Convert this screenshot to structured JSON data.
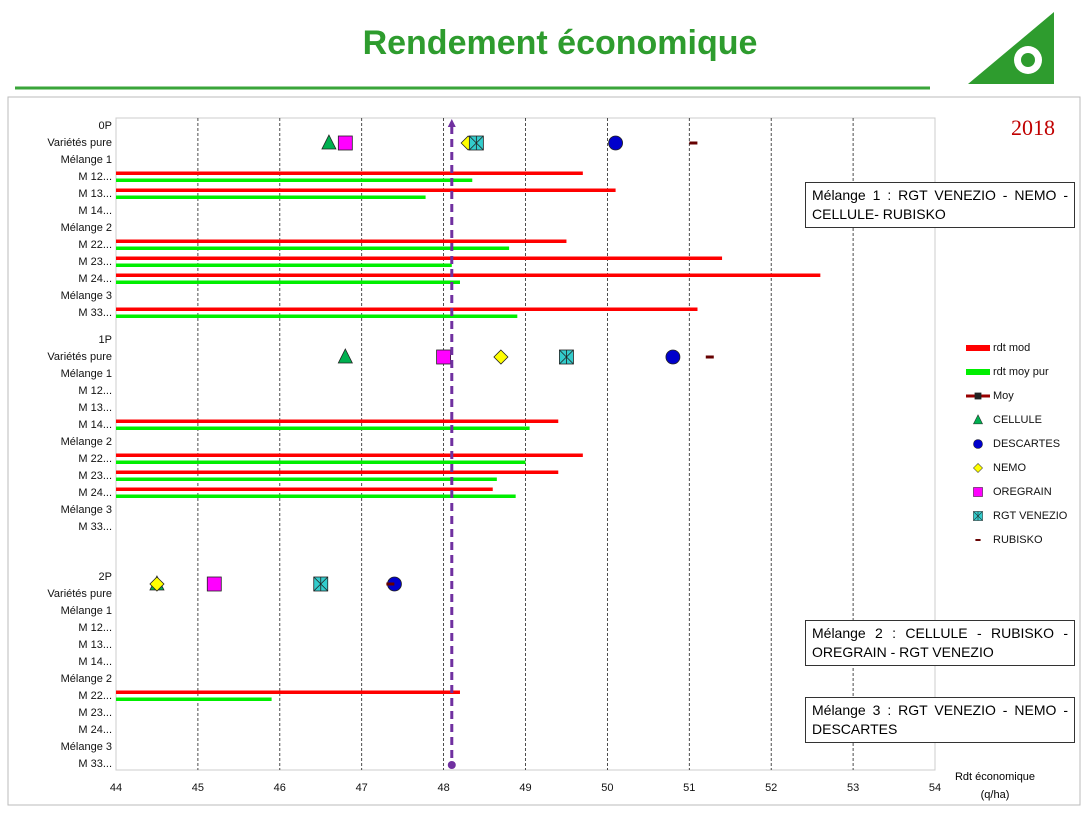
{
  "title": "Rendement économique",
  "logo_year": "2018",
  "chart_data": {
    "type": "bar",
    "groups": [
      "0P",
      "1P",
      "2P"
    ],
    "categories": [
      "Variétés pure",
      "Mélange 1",
      "M 12...",
      "M 13...",
      "M 14...",
      "Mélange 2",
      "M 22...",
      "M 23...",
      "M 24...",
      "Mélange 3",
      "M 33..."
    ],
    "series": [
      {
        "name": "rdt mod",
        "color": "#ff0000",
        "values": [
          [
            null,
            null,
            49.7,
            50.1,
            null,
            null,
            49.5,
            51.4,
            52.6,
            null,
            51.1
          ],
          [
            null,
            null,
            null,
            null,
            49.4,
            null,
            49.7,
            49.4,
            48.6,
            null,
            null
          ],
          [
            null,
            null,
            null,
            null,
            null,
            null,
            48.2,
            null,
            null,
            null,
            null
          ]
        ]
      },
      {
        "name": "rdt moy pur",
        "color": "#00ee00",
        "values": [
          [
            null,
            null,
            48.35,
            47.78,
            null,
            null,
            48.8,
            48.1,
            48.2,
            null,
            48.9
          ],
          [
            null,
            null,
            null,
            null,
            49.05,
            null,
            49,
            48.65,
            48.88,
            null,
            null
          ],
          [
            null,
            null,
            null,
            null,
            null,
            null,
            45.9,
            null,
            null,
            null,
            null
          ]
        ]
      }
    ],
    "points": [
      {
        "name": "Moy",
        "color": "#990000",
        "shape": "line-square",
        "values": [
          null,
          null,
          null
        ]
      },
      {
        "name": "CELLULE",
        "color": "#00b050",
        "shape": "triangle",
        "values": [
          46.6,
          46.8,
          44.5
        ]
      },
      {
        "name": "DESCARTES",
        "color": "#0000cc",
        "shape": "circle",
        "values": [
          50.1,
          50.8,
          47.4
        ]
      },
      {
        "name": "NEMO",
        "color": "#ffff00",
        "shape": "diamond",
        "values": [
          48.3,
          48.7,
          44.5
        ]
      },
      {
        "name": "OREGRAIN",
        "color": "#ff00ff",
        "shape": "square",
        "values": [
          46.8,
          48,
          45.2
        ]
      },
      {
        "name": "RGT VENEZIO",
        "color": "#33cccc",
        "shape": "star-square",
        "values": [
          48.4,
          49.5,
          46.5
        ]
      },
      {
        "name": "RUBISKO",
        "color": "#660000",
        "shape": "dash",
        "values": [
          51.05,
          51.25,
          47.35
        ]
      }
    ],
    "reference_line": {
      "value": 48.1,
      "color": "#7030a0"
    },
    "xlim": [
      44,
      54
    ],
    "xticks": [
      44,
      45,
      46,
      47,
      48,
      49,
      50,
      51,
      52,
      53,
      54
    ],
    "grid": true,
    "x_label": "Rdt économique (q/ha)",
    "notes": [
      "Mélange 1 : RGT VENEZIO - NEMO - CELLULE- RUBISKO",
      "Mélange 2 : CELLULE - RUBISKO - OREGRAIN - RGT VENEZIO",
      "Mélange 3 : RGT VENEZIO - NEMO - DESCARTES"
    ]
  }
}
